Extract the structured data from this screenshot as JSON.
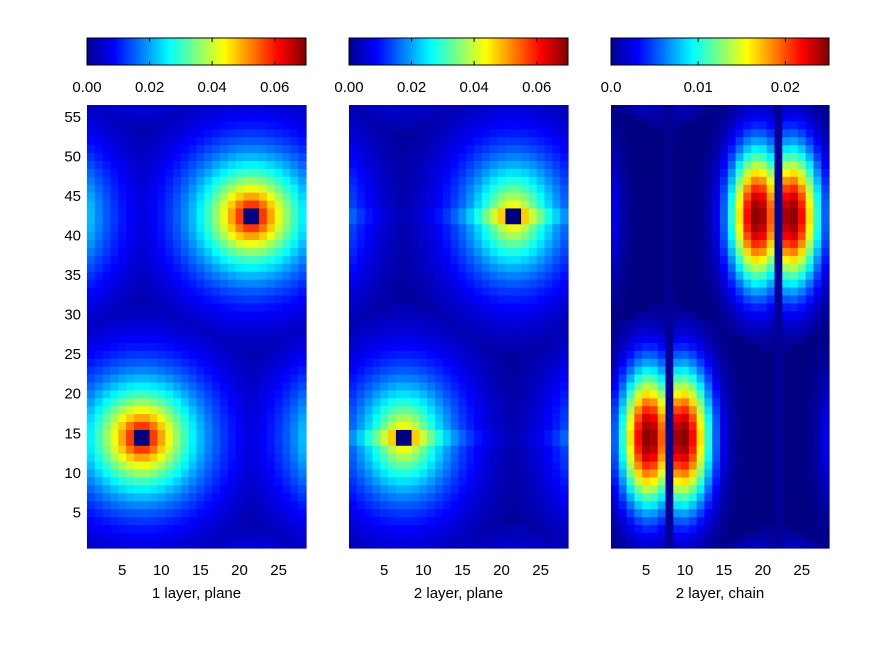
{
  "chart_data": [
    {
      "type": "heatmap",
      "xlabel": "1 layer, plane",
      "xlim": [
        0.5,
        28.5
      ],
      "ylim": [
        0.5,
        56.5
      ],
      "xticks": [
        5,
        10,
        15,
        20,
        25
      ],
      "yticks": [
        5,
        10,
        15,
        20,
        25,
        30,
        35,
        40,
        45,
        50,
        55
      ],
      "colorbar": {
        "range": [
          0,
          0.07
        ],
        "ticks": [
          0.0,
          0.02,
          0.04,
          0.06
        ],
        "tick_labels": [
          "0.00",
          "0.02",
          "0.04",
          "0.06"
        ]
      },
      "colormap": "jet",
      "peaks": [
        {
          "x": 7.5,
          "y": 14.5,
          "max": 0.07,
          "core_min": 0.0
        },
        {
          "x": 21.5,
          "y": 42.5,
          "max": 0.07,
          "core_min": 0.0
        }
      ],
      "field_model": "radial",
      "decay_length": 6.5
    },
    {
      "type": "heatmap",
      "xlabel": "2 layer, plane",
      "xlim": [
        0.5,
        28.5
      ],
      "ylim": [
        0.5,
        56.5
      ],
      "xticks": [
        5,
        10,
        15,
        20,
        25
      ],
      "yticks": [],
      "colorbar": {
        "range": [
          0,
          0.07
        ],
        "ticks": [
          0.0,
          0.02,
          0.04,
          0.06
        ],
        "tick_labels": [
          "0.00",
          "0.02",
          "0.04",
          "0.06"
        ]
      },
      "colormap": "jet",
      "peaks": [
        {
          "x": 7.5,
          "y": 14.5,
          "max": 0.05,
          "core_min": 0.0
        },
        {
          "x": 21.5,
          "y": 42.5,
          "max": 0.05,
          "core_min": 0.0
        }
      ],
      "field_model": "elongated",
      "decay_length": 6.5
    },
    {
      "type": "heatmap",
      "xlabel": "2 layer, chain",
      "xlim": [
        0.5,
        28.5
      ],
      "ylim": [
        0.5,
        56.5
      ],
      "xticks": [
        5,
        10,
        15,
        20,
        25
      ],
      "yticks": [],
      "colorbar": {
        "range": [
          0,
          0.025
        ],
        "ticks": [
          0.0,
          0.01,
          0.02
        ],
        "tick_labels": [
          "0.0",
          "0.01",
          "0.02"
        ]
      },
      "colormap": "jet",
      "peaks": [
        {
          "x": 7.5,
          "y": 14.5,
          "max": 0.025,
          "core_min": 0.0
        },
        {
          "x": 21.5,
          "y": 42.5,
          "max": 0.025,
          "core_min": 0.0
        }
      ],
      "field_model": "two-lobe",
      "node_columns": [
        8,
        22
      ],
      "decay_length": 7.0
    }
  ]
}
